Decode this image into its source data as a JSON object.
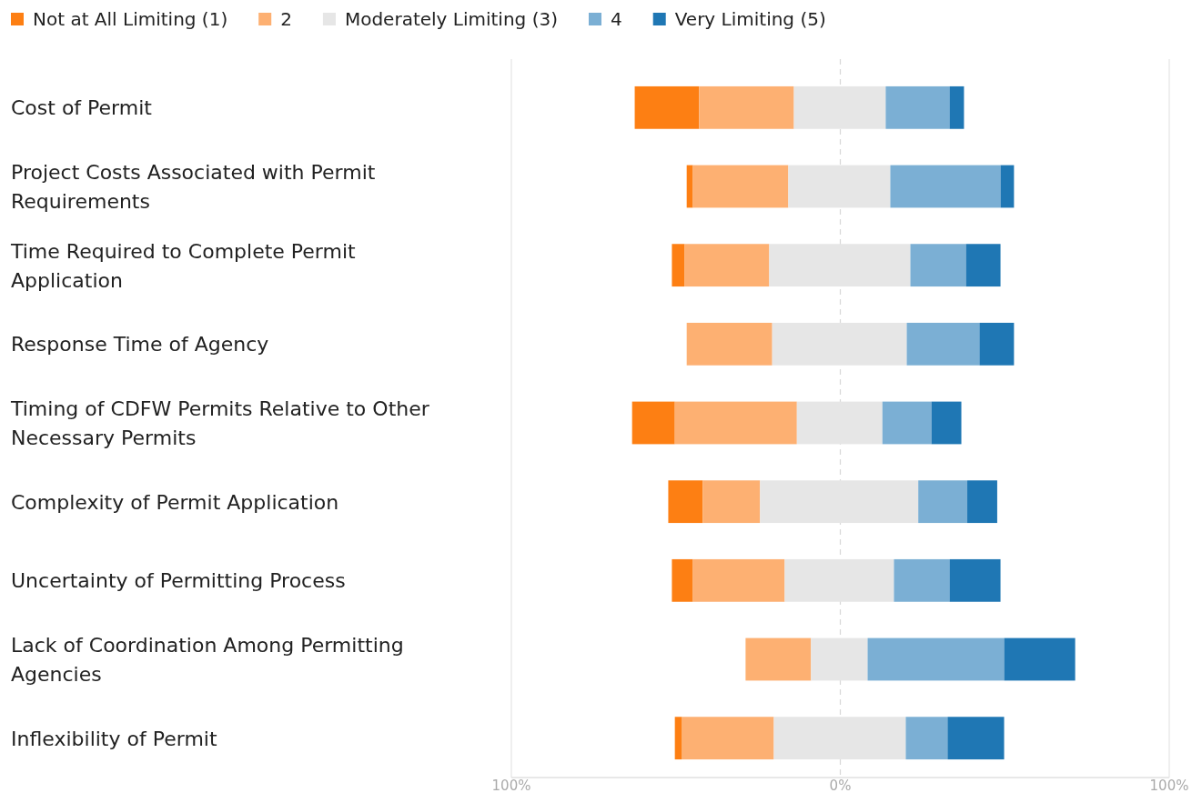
{
  "chart_data": {
    "type": "bar",
    "orientation": "horizontal",
    "categories": [
      "Cost of Permit",
      "Project Costs Associated with Permit Requirements",
      "Time Required to Complete Permit Application",
      "Response Time of Agency",
      "Timing of CDFW Permits Relative to Other Necessary Permits",
      "Complexity of Permit Application",
      "Uncertainty of Permitting Process",
      "Lack of Coordination Among Permitting Agencies",
      "Inflexibility of Permit"
    ],
    "series": [
      {
        "name": "Not at All Limiting (1)",
        "color": "#fd7f13",
        "base": [
          -62.5,
          -46.7,
          -51.2,
          null,
          -63.3,
          -52.3,
          -51.2,
          null,
          -50.3
        ],
        "values": [
          19.6,
          1.9,
          3.9,
          null,
          13.0,
          10.5,
          6.4,
          null,
          2.2
        ]
      },
      {
        "name": "2",
        "color": "#fdb072",
        "base": [
          -42.9,
          -44.8,
          -47.3,
          -46.7,
          -50.3,
          -41.8,
          -44.8,
          -28.8,
          -48.1
        ],
        "values": [
          28.8,
          29.0,
          25.7,
          26.0,
          37.1,
          17.4,
          27.9,
          19.9,
          27.9
        ]
      },
      {
        "name": "Moderately Limiting (3)",
        "color": "#e6e6e6",
        "base": [
          -14.1,
          -15.8,
          -21.6,
          -20.7,
          -13.2,
          -24.4,
          -16.9,
          -8.9,
          -20.2
        ],
        "values": [
          27.9,
          31.0,
          42.9,
          40.9,
          26.0,
          48.1,
          33.2,
          17.2,
          40.1
        ]
      },
      {
        "name": "4",
        "color": "#7bafd4",
        "base": [
          13.8,
          15.2,
          21.3,
          20.2,
          12.8,
          23.7,
          16.3,
          8.3,
          19.9
        ],
        "values": [
          19.4,
          33.5,
          16.9,
          22.1,
          14.9,
          14.9,
          16.9,
          41.5,
          12.7
        ]
      },
      {
        "name": "Very Limiting (5)",
        "color": "#1f77b4",
        "base": [
          33.2,
          48.7,
          38.2,
          42.3,
          27.7,
          38.6,
          33.2,
          49.8,
          32.6
        ],
        "values": [
          4.4,
          4.1,
          10.5,
          10.5,
          9.1,
          9.1,
          15.5,
          21.6,
          17.2
        ]
      }
    ],
    "xlim": [
      -100,
      100
    ],
    "xticks": [
      {
        "value": -100,
        "label": "100%"
      },
      {
        "value": 0,
        "label": "0%"
      },
      {
        "value": 100,
        "label": "100%"
      }
    ],
    "grid": "x",
    "legend": "top left"
  }
}
